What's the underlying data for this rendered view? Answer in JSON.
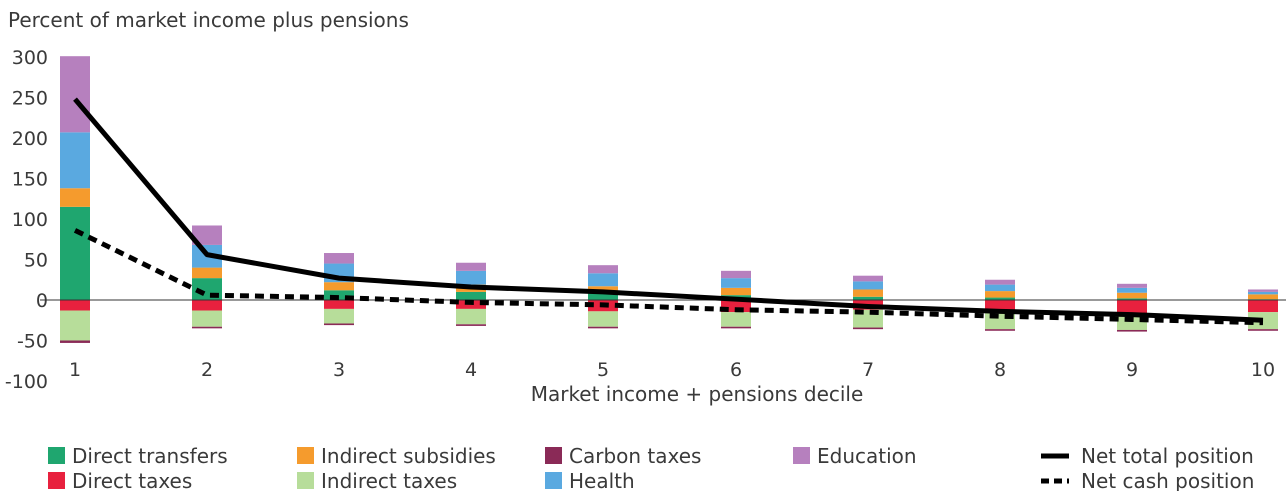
{
  "chart_data": {
    "type": "bar",
    "subtype": "stacked bar with line overlay",
    "title": "Percent of market income plus pensions",
    "xlabel": "Market income + pensions decile",
    "ylabel": "",
    "ylim": [
      -100,
      300
    ],
    "yticks": [
      300,
      250,
      200,
      150,
      100,
      50,
      0,
      -50,
      -100
    ],
    "categories": [
      "1",
      "2",
      "3",
      "4",
      "5",
      "6",
      "7",
      "8",
      "9",
      "10"
    ],
    "grid": false,
    "legend_position": "bottom",
    "series": [
      {
        "name": "Direct transfers",
        "kind": "bar",
        "color": "#1fa66f",
        "values": [
          115,
          27,
          12,
          10,
          8,
          6,
          4,
          3,
          2,
          1
        ]
      },
      {
        "name": "Indirect subsidies",
        "kind": "bar",
        "color": "#f59b2d",
        "values": [
          23,
          13,
          10,
          9,
          9,
          9,
          9,
          8,
          7,
          6
        ]
      },
      {
        "name": "Health",
        "kind": "bar",
        "color": "#5aa9e0",
        "values": [
          69,
          28,
          23,
          17,
          16,
          12,
          10,
          8,
          6,
          3
        ]
      },
      {
        "name": "Education",
        "kind": "bar",
        "color": "#b680be",
        "values": [
          94,
          24,
          13,
          10,
          10,
          9,
          7,
          6,
          5,
          3
        ]
      },
      {
        "name": "Direct taxes",
        "kind": "bar",
        "color": "#e8213e",
        "values": [
          -13,
          -13,
          -11,
          -11,
          -14,
          -15,
          -12,
          -15,
          -18,
          -15
        ]
      },
      {
        "name": "Indirect taxes",
        "kind": "bar",
        "color": "#b7dd9a",
        "values": [
          -37,
          -20,
          -18,
          -19,
          -19,
          -18,
          -22,
          -21,
          -19,
          -21
        ]
      },
      {
        "name": "Carbon taxes",
        "kind": "bar",
        "color": "#8a2a57",
        "values": [
          -3,
          -2,
          -2,
          -2,
          -2,
          -2,
          -2,
          -2,
          -2,
          -2
        ]
      },
      {
        "name": "Net total position",
        "kind": "line",
        "style": "solid",
        "color": "#000000",
        "values": [
          248,
          56,
          27,
          16,
          10,
          1,
          -8,
          -14,
          -18,
          -25
        ]
      },
      {
        "name": "Net cash position",
        "kind": "line",
        "style": "dashed",
        "color": "#000000",
        "values": [
          86,
          6,
          3,
          -3,
          -6,
          -12,
          -15,
          -20,
          -24,
          -28
        ]
      }
    ],
    "legend": [
      "Direct transfers",
      "Indirect subsidies",
      "Carbon taxes",
      "Education",
      "Direct taxes",
      "Indirect taxes",
      "Health",
      "Net total position",
      "Net cash position"
    ]
  }
}
